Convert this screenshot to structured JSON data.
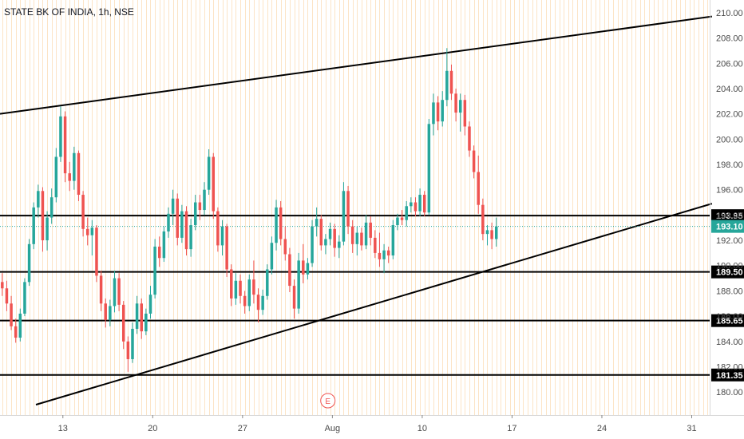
{
  "chart_data": {
    "type": "candlestick",
    "title": "STATE BK OF INDIA, 1h, NSE",
    "ylim": [
      179,
      210.5
    ],
    "y_ticks": [
      180,
      182,
      184,
      186,
      188,
      190,
      192,
      194,
      196,
      198,
      200,
      202,
      204,
      206,
      208,
      210
    ],
    "y_tick_labels": [
      "180.00",
      "182.00",
      "184.00",
      "186.00",
      "188.00",
      "190.00",
      "192.00",
      "194.00",
      "196.00",
      "198.00",
      "200.00",
      "202.00",
      "204.00",
      "206.00",
      "208.00",
      "210.00"
    ],
    "x_ticks": [
      {
        "label": "13",
        "bar": 13.5
      },
      {
        "label": "20",
        "bar": 33.5
      },
      {
        "label": "27",
        "bar": 53.5
      },
      {
        "label": "Aug",
        "bar": 73.5
      },
      {
        "label": "10",
        "bar": 93.5
      },
      {
        "label": "17",
        "bar": 113.5
      },
      {
        "label": "24",
        "bar": 133.5
      },
      {
        "label": "31",
        "bar": 153.5
      }
    ],
    "bar_slots": 158,
    "up_color": "#26a69a",
    "down_color": "#ef5350",
    "grid_color": "#fce4c6",
    "candles": [
      [
        188.7,
        189.4,
        187.6,
        188.2
      ],
      [
        188.2,
        188.8,
        186.4,
        187.0
      ],
      [
        187.0,
        187.6,
        184.9,
        185.2
      ],
      [
        185.2,
        185.8,
        183.9,
        184.3
      ],
      [
        184.3,
        186.6,
        184.0,
        186.2
      ],
      [
        186.2,
        189.0,
        186.0,
        188.7
      ],
      [
        188.7,
        192.1,
        188.4,
        191.7
      ],
      [
        191.7,
        195.0,
        191.3,
        194.6
      ],
      [
        194.6,
        196.4,
        193.8,
        195.9
      ],
      [
        195.9,
        196.2,
        191.1,
        192.0
      ],
      [
        192.0,
        194.3,
        191.2,
        193.8
      ],
      [
        193.8,
        196.1,
        193.3,
        195.4
      ],
      [
        195.4,
        199.3,
        195.0,
        198.6
      ],
      [
        198.6,
        202.6,
        198.2,
        201.8
      ],
      [
        201.8,
        202.2,
        196.6,
        197.3
      ],
      [
        197.3,
        198.2,
        195.9,
        196.7
      ],
      [
        196.7,
        199.4,
        196.0,
        198.9
      ],
      [
        198.9,
        199.1,
        195.1,
        195.6
      ],
      [
        195.6,
        195.9,
        192.3,
        192.9
      ],
      [
        192.9,
        193.8,
        191.6,
        192.4
      ],
      [
        192.4,
        193.6,
        190.8,
        193.0
      ],
      [
        193.0,
        193.2,
        188.7,
        189.2
      ],
      [
        189.2,
        189.6,
        186.4,
        187.0
      ],
      [
        187.0,
        187.4,
        185.1,
        185.7
      ],
      [
        185.7,
        187.3,
        185.2,
        186.8
      ],
      [
        186.8,
        189.6,
        186.3,
        189.0
      ],
      [
        189.0,
        189.4,
        186.4,
        186.9
      ],
      [
        186.9,
        187.2,
        183.4,
        184.0
      ],
      [
        184.0,
        184.4,
        181.6,
        182.6
      ],
      [
        182.6,
        185.5,
        182.3,
        185.0
      ],
      [
        185.0,
        187.6,
        184.6,
        187.0
      ],
      [
        187.0,
        187.4,
        184.2,
        184.8
      ],
      [
        184.8,
        186.6,
        184.5,
        186.2
      ],
      [
        186.2,
        188.4,
        185.8,
        187.7
      ],
      [
        187.7,
        192.1,
        187.4,
        191.5
      ],
      [
        191.5,
        192.3,
        189.9,
        190.6
      ],
      [
        190.6,
        193.1,
        190.3,
        192.7
      ],
      [
        192.7,
        194.6,
        192.2,
        194.1
      ],
      [
        194.1,
        196.0,
        193.2,
        195.3
      ],
      [
        195.3,
        195.7,
        191.6,
        192.2
      ],
      [
        192.2,
        194.8,
        191.8,
        194.3
      ],
      [
        194.3,
        194.7,
        190.8,
        191.3
      ],
      [
        191.3,
        193.7,
        190.7,
        193.2
      ],
      [
        193.2,
        195.6,
        192.8,
        195.0
      ],
      [
        195.0,
        195.6,
        193.6,
        194.4
      ],
      [
        194.4,
        196.6,
        194.0,
        196.0
      ],
      [
        196.0,
        199.2,
        195.6,
        198.6
      ],
      [
        198.6,
        198.9,
        193.7,
        194.3
      ],
      [
        194.3,
        194.6,
        191.1,
        191.6
      ],
      [
        191.6,
        193.6,
        190.8,
        193.1
      ],
      [
        193.1,
        193.3,
        189.1,
        189.7
      ],
      [
        189.7,
        190.1,
        186.8,
        187.4
      ],
      [
        187.4,
        189.4,
        186.9,
        188.8
      ],
      [
        188.8,
        189.3,
        187.0,
        187.6
      ],
      [
        187.6,
        188.0,
        186.2,
        186.8
      ],
      [
        186.8,
        189.3,
        186.4,
        188.9
      ],
      [
        188.9,
        190.4,
        187.0,
        187.7
      ],
      [
        187.7,
        188.2,
        185.5,
        186.5
      ],
      [
        186.5,
        188.1,
        186.1,
        187.6
      ],
      [
        187.6,
        190.1,
        187.3,
        189.7
      ],
      [
        189.7,
        192.3,
        189.3,
        191.8
      ],
      [
        191.8,
        195.2,
        191.2,
        194.6
      ],
      [
        194.6,
        195.1,
        191.6,
        192.1
      ],
      [
        192.1,
        193.1,
        190.4,
        190.9
      ],
      [
        190.9,
        191.4,
        187.9,
        188.4
      ],
      [
        188.4,
        188.9,
        185.8,
        186.6
      ],
      [
        186.6,
        191.0,
        186.2,
        190.4
      ],
      [
        190.4,
        191.7,
        188.6,
        189.3
      ],
      [
        189.3,
        190.6,
        188.9,
        190.2
      ],
      [
        190.2,
        193.6,
        189.9,
        193.1
      ],
      [
        193.1,
        194.6,
        192.3,
        193.7
      ],
      [
        193.7,
        194.0,
        191.2,
        191.6
      ],
      [
        191.6,
        192.5,
        190.9,
        192.1
      ],
      [
        192.1,
        193.4,
        191.6,
        192.9
      ],
      [
        192.9,
        193.3,
        190.7,
        191.4
      ],
      [
        191.4,
        192.4,
        190.6,
        191.9
      ],
      [
        191.9,
        196.6,
        191.6,
        195.9
      ],
      [
        195.9,
        196.3,
        192.5,
        193.1
      ],
      [
        193.1,
        193.6,
        191.0,
        191.7
      ],
      [
        191.7,
        193.1,
        190.8,
        192.6
      ],
      [
        192.6,
        193.0,
        191.2,
        191.6
      ],
      [
        191.6,
        194.0,
        191.3,
        193.4
      ],
      [
        193.4,
        193.9,
        191.6,
        192.2
      ],
      [
        192.2,
        192.8,
        190.6,
        191.0
      ],
      [
        191.0,
        192.6,
        189.9,
        190.5
      ],
      [
        190.5,
        191.7,
        189.4,
        191.2
      ],
      [
        191.2,
        191.5,
        190.2,
        190.8
      ],
      [
        190.8,
        193.6,
        190.5,
        193.2
      ],
      [
        193.2,
        194.1,
        192.8,
        193.8
      ],
      [
        193.8,
        194.4,
        193.2,
        193.6
      ],
      [
        193.6,
        195.1,
        193.1,
        194.7
      ],
      [
        194.7,
        195.4,
        194.2,
        195.0
      ],
      [
        195.0,
        195.4,
        193.9,
        194.3
      ],
      [
        194.3,
        196.1,
        193.9,
        195.6
      ],
      [
        195.6,
        195.9,
        193.9,
        194.2
      ],
      [
        194.2,
        201.6,
        194.0,
        201.2
      ],
      [
        201.2,
        203.6,
        200.3,
        202.9
      ],
      [
        202.9,
        203.4,
        200.7,
        201.4
      ],
      [
        201.4,
        203.8,
        201.0,
        203.1
      ],
      [
        203.1,
        207.2,
        202.6,
        205.4
      ],
      [
        205.4,
        205.9,
        203.1,
        203.6
      ],
      [
        203.6,
        204.0,
        201.4,
        202.1
      ],
      [
        202.1,
        203.6,
        200.6,
        203.1
      ],
      [
        203.1,
        203.5,
        200.3,
        201.0
      ],
      [
        201.0,
        201.4,
        198.6,
        199.1
      ],
      [
        199.1,
        199.5,
        196.9,
        197.4
      ],
      [
        197.4,
        198.7,
        194.1,
        194.8
      ],
      [
        194.8,
        195.3,
        192.0,
        192.5
      ],
      [
        192.5,
        193.2,
        191.6,
        192.8
      ],
      [
        192.8,
        193.4,
        191.3,
        192.1
      ],
      [
        192.1,
        193.8,
        191.5,
        193.1
      ]
    ],
    "last_price": 193.1,
    "last_price_label": "193.10",
    "levels": [
      {
        "name": "193.95",
        "price": 193.95,
        "label": "193.95"
      },
      {
        "name": "189.50",
        "price": 189.5,
        "label": "189.50"
      },
      {
        "name": "185.65",
        "price": 185.65,
        "label": "185.65"
      },
      {
        "name": "181.35",
        "price": 181.35,
        "label": "181.35"
      }
    ],
    "trendlines": [
      {
        "name": "upper-channel",
        "x1": -0.5,
        "y1": 202.0,
        "x2": 158,
        "y2": 209.7
      },
      {
        "name": "lower-channel",
        "x1": 7.5,
        "y1": 179.0,
        "x2": 158,
        "y2": 194.9
      }
    ],
    "event_marker": {
      "label": "E",
      "bar": 72.5
    }
  }
}
